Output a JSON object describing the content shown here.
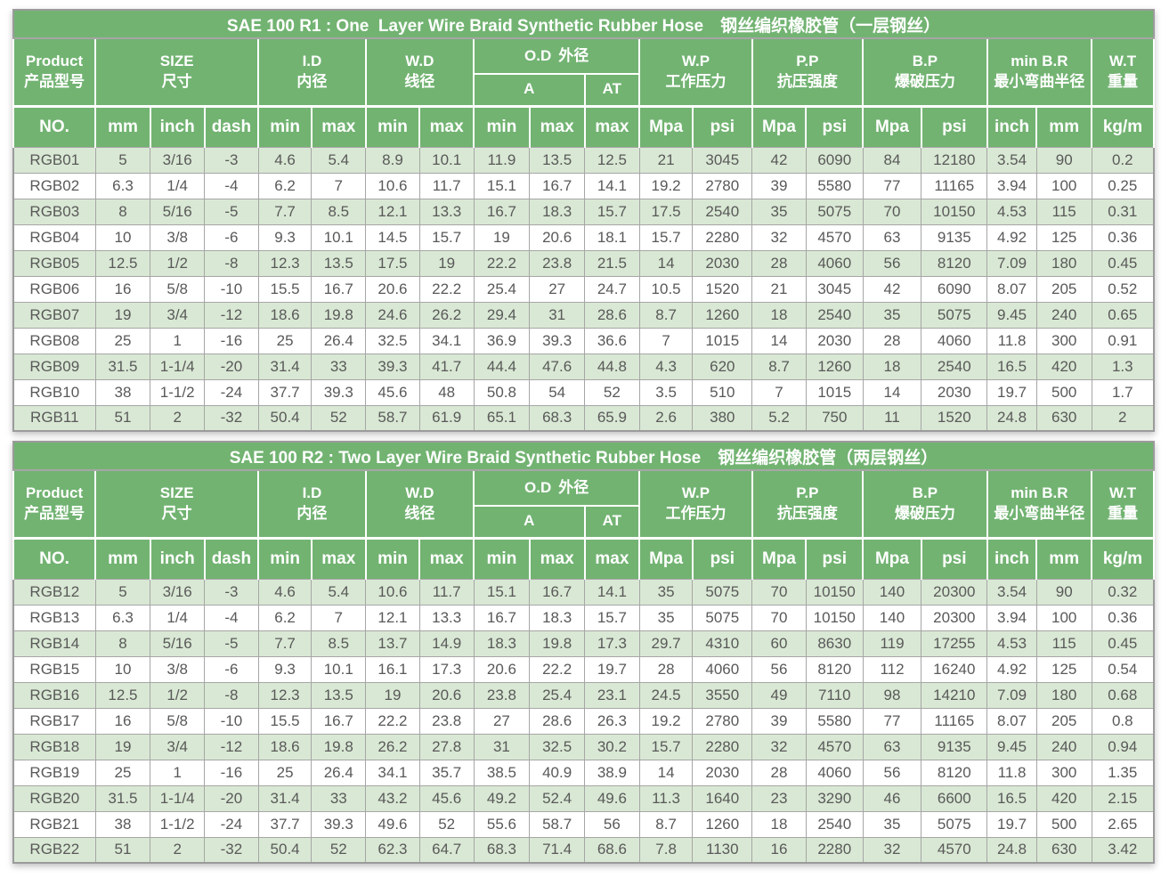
{
  "colors": {
    "header_green": "#72b372",
    "row_green": "#d9e8d4",
    "row_white": "#ffffff",
    "grid_gray": "#a6a6a6",
    "data_text": "#595959",
    "header_text": "#ffffff"
  },
  "columns": {
    "groups": [
      {
        "en": "Product",
        "zh": "产品型号"
      },
      {
        "en": "SIZE",
        "zh": "尺寸"
      },
      {
        "en": "I.D",
        "zh": "内径"
      },
      {
        "en": "W.D",
        "zh": "线径"
      },
      {
        "en": "O.D",
        "zh": "外径"
      },
      {
        "en": "W.P",
        "zh": "工作压力"
      },
      {
        "en": "P.P",
        "zh": "抗压强度"
      },
      {
        "en": "B.P",
        "zh": "爆破压力"
      },
      {
        "en": "min B.R",
        "zh": "最小弯曲半径"
      },
      {
        "en": "W.T",
        "zh": "重量"
      }
    ],
    "od_sub": [
      "A",
      "AT"
    ],
    "units": [
      "NO.",
      "mm",
      "inch",
      "dash",
      "min",
      "max",
      "min",
      "max",
      "min",
      "max",
      "max",
      "Mpa",
      "psi",
      "Mpa",
      "psi",
      "Mpa",
      "psi",
      "inch",
      "mm",
      "kg/m"
    ]
  },
  "tables": [
    {
      "title": "SAE 100 R1 : One  Layer Wire Braid Synthetic Rubber Hose　钢丝编织橡胶管（一层钢丝）",
      "rows": [
        [
          "RGB01",
          "5",
          "3/16",
          "-3",
          "4.6",
          "5.4",
          "8.9",
          "10.1",
          "11.9",
          "13.5",
          "12.5",
          "21",
          "3045",
          "42",
          "6090",
          "84",
          "12180",
          "3.54",
          "90",
          "0.2"
        ],
        [
          "RGB02",
          "6.3",
          "1/4",
          "-4",
          "6.2",
          "7",
          "10.6",
          "11.7",
          "15.1",
          "16.7",
          "14.1",
          "19.2",
          "2780",
          "39",
          "5580",
          "77",
          "11165",
          "3.94",
          "100",
          "0.25"
        ],
        [
          "RGB03",
          "8",
          "5/16",
          "-5",
          "7.7",
          "8.5",
          "12.1",
          "13.3",
          "16.7",
          "18.3",
          "15.7",
          "17.5",
          "2540",
          "35",
          "5075",
          "70",
          "10150",
          "4.53",
          "115",
          "0.31"
        ],
        [
          "RGB04",
          "10",
          "3/8",
          "-6",
          "9.3",
          "10.1",
          "14.5",
          "15.7",
          "19",
          "20.6",
          "18.1",
          "15.7",
          "2280",
          "32",
          "4570",
          "63",
          "9135",
          "4.92",
          "125",
          "0.36"
        ],
        [
          "RGB05",
          "12.5",
          "1/2",
          "-8",
          "12.3",
          "13.5",
          "17.5",
          "19",
          "22.2",
          "23.8",
          "21.5",
          "14",
          "2030",
          "28",
          "4060",
          "56",
          "8120",
          "7.09",
          "180",
          "0.45"
        ],
        [
          "RGB06",
          "16",
          "5/8",
          "-10",
          "15.5",
          "16.7",
          "20.6",
          "22.2",
          "25.4",
          "27",
          "24.7",
          "10.5",
          "1520",
          "21",
          "3045",
          "42",
          "6090",
          "8.07",
          "205",
          "0.52"
        ],
        [
          "RGB07",
          "19",
          "3/4",
          "-12",
          "18.6",
          "19.8",
          "24.6",
          "26.2",
          "29.4",
          "31",
          "28.6",
          "8.7",
          "1260",
          "18",
          "2540",
          "35",
          "5075",
          "9.45",
          "240",
          "0.65"
        ],
        [
          "RGB08",
          "25",
          "1",
          "-16",
          "25",
          "26.4",
          "32.5",
          "34.1",
          "36.9",
          "39.3",
          "36.6",
          "7",
          "1015",
          "14",
          "2030",
          "28",
          "4060",
          "11.8",
          "300",
          "0.91"
        ],
        [
          "RGB09",
          "31.5",
          "1-1/4",
          "-20",
          "31.4",
          "33",
          "39.3",
          "41.7",
          "44.4",
          "47.6",
          "44.8",
          "4.3",
          "620",
          "8.7",
          "1260",
          "18",
          "2540",
          "16.5",
          "420",
          "1.3"
        ],
        [
          "RGB10",
          "38",
          "1-1/2",
          "-24",
          "37.7",
          "39.3",
          "45.6",
          "48",
          "50.8",
          "54",
          "52",
          "3.5",
          "510",
          "7",
          "1015",
          "14",
          "2030",
          "19.7",
          "500",
          "1.7"
        ],
        [
          "RGB11",
          "51",
          "2",
          "-32",
          "50.4",
          "52",
          "58.7",
          "61.9",
          "65.1",
          "68.3",
          "65.9",
          "2.6",
          "380",
          "5.2",
          "750",
          "11",
          "1520",
          "24.8",
          "630",
          "2"
        ]
      ]
    },
    {
      "title": "SAE 100 R2 : Two Layer Wire Braid Synthetic Rubber Hose　钢丝编织橡胶管（两层钢丝）",
      "rows": [
        [
          "RGB12",
          "5",
          "3/16",
          "-3",
          "4.6",
          "5.4",
          "10.6",
          "11.7",
          "15.1",
          "16.7",
          "14.1",
          "35",
          "5075",
          "70",
          "10150",
          "140",
          "20300",
          "3.54",
          "90",
          "0.32"
        ],
        [
          "RGB13",
          "6.3",
          "1/4",
          "-4",
          "6.2",
          "7",
          "12.1",
          "13.3",
          "16.7",
          "18.3",
          "15.7",
          "35",
          "5075",
          "70",
          "10150",
          "140",
          "20300",
          "3.94",
          "100",
          "0.36"
        ],
        [
          "RGB14",
          "8",
          "5/16",
          "-5",
          "7.7",
          "8.5",
          "13.7",
          "14.9",
          "18.3",
          "19.8",
          "17.3",
          "29.7",
          "4310",
          "60",
          "8630",
          "119",
          "17255",
          "4.53",
          "115",
          "0.45"
        ],
        [
          "RGB15",
          "10",
          "3/8",
          "-6",
          "9.3",
          "10.1",
          "16.1",
          "17.3",
          "20.6",
          "22.2",
          "19.7",
          "28",
          "4060",
          "56",
          "8120",
          "112",
          "16240",
          "4.92",
          "125",
          "0.54"
        ],
        [
          "RGB16",
          "12.5",
          "1/2",
          "-8",
          "12.3",
          "13.5",
          "19",
          "20.6",
          "23.8",
          "25.4",
          "23.1",
          "24.5",
          "3550",
          "49",
          "7110",
          "98",
          "14210",
          "7.09",
          "180",
          "0.68"
        ],
        [
          "RGB17",
          "16",
          "5/8",
          "-10",
          "15.5",
          "16.7",
          "22.2",
          "23.8",
          "27",
          "28.6",
          "26.3",
          "19.2",
          "2780",
          "39",
          "5580",
          "77",
          "11165",
          "8.07",
          "205",
          "0.8"
        ],
        [
          "RGB18",
          "19",
          "3/4",
          "-12",
          "18.6",
          "19.8",
          "26.2",
          "27.8",
          "31",
          "32.5",
          "30.2",
          "15.7",
          "2280",
          "32",
          "4570",
          "63",
          "9135",
          "9.45",
          "240",
          "0.94"
        ],
        [
          "RGB19",
          "25",
          "1",
          "-16",
          "25",
          "26.4",
          "34.1",
          "35.7",
          "38.5",
          "40.9",
          "38.9",
          "14",
          "2030",
          "28",
          "4060",
          "56",
          "8120",
          "11.8",
          "300",
          "1.35"
        ],
        [
          "RGB20",
          "31.5",
          "1-1/4",
          "-20",
          "31.4",
          "33",
          "43.2",
          "45.6",
          "49.2",
          "52.4",
          "49.6",
          "11.3",
          "1640",
          "23",
          "3290",
          "46",
          "6600",
          "16.5",
          "420",
          "2.15"
        ],
        [
          "RGB21",
          "38",
          "1-1/2",
          "-24",
          "37.7",
          "39.3",
          "49.6",
          "52",
          "55.6",
          "58.7",
          "56",
          "8.7",
          "1260",
          "18",
          "2540",
          "35",
          "5075",
          "19.7",
          "500",
          "2.65"
        ],
        [
          "RGB22",
          "51",
          "2",
          "-32",
          "50.4",
          "52",
          "62.3",
          "64.7",
          "68.3",
          "71.4",
          "68.6",
          "7.8",
          "1130",
          "16",
          "2280",
          "32",
          "4570",
          "24.8",
          "630",
          "3.42"
        ]
      ]
    }
  ]
}
